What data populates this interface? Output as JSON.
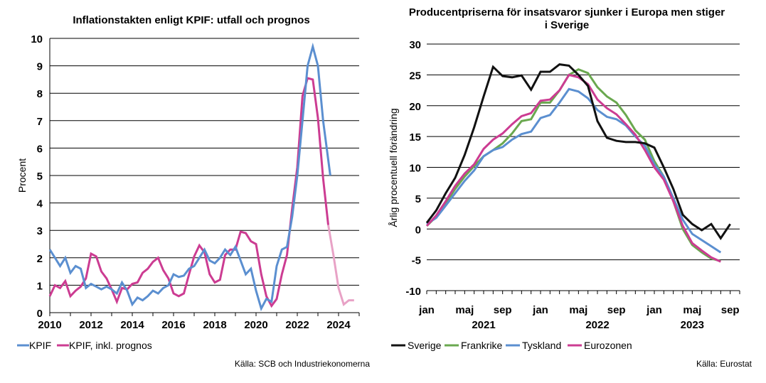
{
  "chart_data": [
    {
      "type": "line",
      "title": "Inflationstakten enligt KPIF: utfall och prognos",
      "ylabel": "Procent",
      "ylim": [
        0,
        10
      ],
      "xlim": [
        2010,
        2025
      ],
      "yticks": [
        "0",
        "1",
        "2",
        "3",
        "4",
        "5",
        "6",
        "7",
        "8",
        "9",
        "10"
      ],
      "xticks": [
        "2010",
        "2012",
        "2014",
        "2016",
        "2018",
        "2020",
        "2022",
        "2024"
      ],
      "grid": true,
      "source": "Källa: SCB och Industriekonomerna",
      "legend_position": "bottom-left",
      "series": [
        {
          "name": "KPIF",
          "color": "#5b8fd0",
          "points": [
            [
              2010.0,
              2.3
            ],
            [
              2010.25,
              2.0
            ],
            [
              2010.5,
              1.7
            ],
            [
              2010.75,
              2.0
            ],
            [
              2011.0,
              1.45
            ],
            [
              2011.25,
              1.7
            ],
            [
              2011.5,
              1.6
            ],
            [
              2011.75,
              0.9
            ],
            [
              2012.0,
              1.05
            ],
            [
              2012.25,
              0.95
            ],
            [
              2012.5,
              0.85
            ],
            [
              2012.75,
              0.95
            ],
            [
              2013.0,
              0.85
            ],
            [
              2013.25,
              0.7
            ],
            [
              2013.5,
              1.1
            ],
            [
              2013.75,
              0.8
            ],
            [
              2014.0,
              0.3
            ],
            [
              2014.25,
              0.55
            ],
            [
              2014.5,
              0.45
            ],
            [
              2014.75,
              0.6
            ],
            [
              2015.0,
              0.8
            ],
            [
              2015.25,
              0.7
            ],
            [
              2015.5,
              0.9
            ],
            [
              2015.75,
              1.0
            ],
            [
              2016.0,
              1.4
            ],
            [
              2016.25,
              1.3
            ],
            [
              2016.5,
              1.35
            ],
            [
              2016.75,
              1.6
            ],
            [
              2017.0,
              1.7
            ],
            [
              2017.25,
              2.0
            ],
            [
              2017.5,
              2.3
            ],
            [
              2017.75,
              1.9
            ],
            [
              2018.0,
              1.8
            ],
            [
              2018.25,
              2.0
            ],
            [
              2018.5,
              2.3
            ],
            [
              2018.75,
              2.1
            ],
            [
              2019.0,
              2.4
            ],
            [
              2019.25,
              1.9
            ],
            [
              2019.5,
              1.4
            ],
            [
              2019.75,
              1.6
            ],
            [
              2020.0,
              0.8
            ],
            [
              2020.25,
              0.15
            ],
            [
              2020.5,
              0.5
            ],
            [
              2020.75,
              0.4
            ],
            [
              2021.0,
              1.7
            ],
            [
              2021.25,
              2.3
            ],
            [
              2021.5,
              2.4
            ],
            [
              2021.75,
              3.5
            ],
            [
              2022.0,
              5.0
            ],
            [
              2022.25,
              7.0
            ],
            [
              2022.5,
              9.0
            ],
            [
              2022.75,
              9.7
            ],
            [
              2023.0,
              9.0
            ],
            [
              2023.25,
              7.0
            ],
            [
              2023.6,
              5.0
            ]
          ]
        },
        {
          "name": "KPIF, inkl. prognos",
          "color": "#cc3c92",
          "forecast_color": "#e8a2c6",
          "points": [
            [
              2010.0,
              0.6
            ],
            [
              2010.25,
              1.0
            ],
            [
              2010.5,
              0.9
            ],
            [
              2010.75,
              1.15
            ],
            [
              2011.0,
              0.6
            ],
            [
              2011.25,
              0.8
            ],
            [
              2011.5,
              0.95
            ],
            [
              2011.75,
              1.25
            ],
            [
              2012.0,
              2.15
            ],
            [
              2012.25,
              2.05
            ],
            [
              2012.5,
              1.5
            ],
            [
              2012.75,
              1.25
            ],
            [
              2013.0,
              0.85
            ],
            [
              2013.25,
              0.4
            ],
            [
              2013.5,
              0.9
            ],
            [
              2013.75,
              0.85
            ],
            [
              2014.0,
              1.05
            ],
            [
              2014.25,
              1.1
            ],
            [
              2014.5,
              1.45
            ],
            [
              2014.75,
              1.6
            ],
            [
              2015.0,
              1.85
            ],
            [
              2015.25,
              2.0
            ],
            [
              2015.5,
              1.55
            ],
            [
              2015.75,
              1.25
            ],
            [
              2016.0,
              0.7
            ],
            [
              2016.25,
              0.6
            ],
            [
              2016.5,
              0.7
            ],
            [
              2016.75,
              1.4
            ],
            [
              2017.0,
              2.05
            ],
            [
              2017.25,
              2.45
            ],
            [
              2017.5,
              2.2
            ],
            [
              2017.75,
              1.4
            ],
            [
              2018.0,
              1.1
            ],
            [
              2018.25,
              1.2
            ],
            [
              2018.5,
              2.1
            ],
            [
              2018.75,
              2.3
            ],
            [
              2019.0,
              2.3
            ],
            [
              2019.25,
              2.95
            ],
            [
              2019.5,
              2.9
            ],
            [
              2019.75,
              2.6
            ],
            [
              2020.0,
              2.5
            ],
            [
              2020.25,
              1.4
            ],
            [
              2020.5,
              0.6
            ],
            [
              2020.75,
              0.25
            ],
            [
              2021.0,
              0.5
            ],
            [
              2021.25,
              1.4
            ],
            [
              2021.5,
              2.1
            ],
            [
              2021.75,
              3.8
            ],
            [
              2022.0,
              5.3
            ],
            [
              2022.25,
              7.9
            ],
            [
              2022.5,
              8.55
            ],
            [
              2022.75,
              8.5
            ],
            [
              2023.0,
              7.1
            ],
            [
              2023.25,
              4.9
            ],
            [
              2023.5,
              3.2
            ]
          ],
          "forecast_points": [
            [
              2023.5,
              3.2
            ],
            [
              2023.75,
              2.1
            ],
            [
              2024.0,
              0.9
            ],
            [
              2024.25,
              0.3
            ],
            [
              2024.5,
              0.45
            ],
            [
              2024.75,
              0.45
            ]
          ]
        }
      ]
    },
    {
      "type": "line",
      "title": "Producentpriserna för insatsvaror sjunker i Europa men stiger i Sverige",
      "title_lines": [
        "Producentpriserna för insatsvaror sjunker i Europa men stiger",
        "i Sverige"
      ],
      "ylabel": "Årlig procentuell förändring",
      "ylim": [
        -10,
        30
      ],
      "xlim": [
        0,
        33
      ],
      "yticks": [
        "30",
        "25",
        "20",
        "15",
        "10",
        "5",
        "0",
        "-5",
        "-10"
      ],
      "xticks": [
        {
          "pos": 0,
          "label": "jan"
        },
        {
          "pos": 4,
          "label": "maj"
        },
        {
          "pos": 8,
          "label": "sep"
        },
        {
          "pos": 12,
          "label": "jan"
        },
        {
          "pos": 16,
          "label": "maj"
        },
        {
          "pos": 20,
          "label": "sep"
        },
        {
          "pos": 24,
          "label": "jan"
        },
        {
          "pos": 28,
          "label": "maj"
        },
        {
          "pos": 32,
          "label": "sep"
        }
      ],
      "year_labels": [
        {
          "pos": 6,
          "label": "2021"
        },
        {
          "pos": 18,
          "label": "2022"
        },
        {
          "pos": 28,
          "label": "2023"
        }
      ],
      "grid": true,
      "source": "Källa: Eurostat",
      "legend_position": "bottom",
      "series": [
        {
          "name": "Sverige",
          "color": "#111111",
          "values": [
            1.0,
            3.0,
            5.8,
            8.3,
            12.0,
            16.5,
            21.5,
            26.3,
            24.8,
            24.6,
            24.9,
            22.6,
            25.5,
            25.5,
            26.7,
            26.5,
            25.0,
            23.2,
            17.5,
            14.8,
            14.3,
            14.1,
            14.1,
            13.9,
            13.2,
            10.0,
            6.5,
            2.3,
            0.8,
            -0.2,
            0.8,
            -1.5,
            0.8
          ]
        },
        {
          "name": "Frankrike",
          "color": "#6aa84f",
          "values": [
            0.5,
            2.0,
            4.2,
            6.5,
            8.5,
            10.2,
            11.8,
            12.8,
            13.9,
            15.5,
            17.5,
            17.8,
            20.5,
            20.5,
            22.5,
            25.0,
            25.9,
            25.3,
            23.0,
            21.5,
            20.5,
            18.5,
            16.0,
            14.5,
            11.0,
            8.5,
            4.5,
            0.0,
            -2.6,
            -3.8,
            -4.8,
            -5.2
          ]
        },
        {
          "name": "Tyskland",
          "color": "#5b8fd0",
          "values": [
            0.8,
            1.8,
            3.8,
            5.8,
            7.8,
            9.5,
            11.8,
            12.8,
            13.3,
            14.5,
            15.4,
            15.8,
            18.0,
            18.5,
            20.5,
            22.7,
            22.3,
            21.2,
            19.3,
            18.2,
            17.8,
            16.8,
            15.0,
            13.5,
            10.5,
            8.5,
            5.0,
            1.5,
            -0.8,
            -1.8,
            -2.8,
            -3.8
          ]
        },
        {
          "name": "Eurozonen",
          "color": "#cc3c92",
          "values": [
            0.5,
            2.2,
            4.5,
            7.0,
            9.0,
            10.5,
            13.0,
            14.5,
            15.5,
            17.0,
            18.3,
            18.8,
            20.8,
            21.0,
            22.5,
            25.0,
            24.6,
            23.5,
            21.0,
            19.6,
            18.6,
            17.0,
            15.3,
            12.8,
            10.0,
            8.0,
            4.5,
            0.5,
            -2.3,
            -3.5,
            -4.6,
            -5.3
          ]
        }
      ]
    }
  ]
}
